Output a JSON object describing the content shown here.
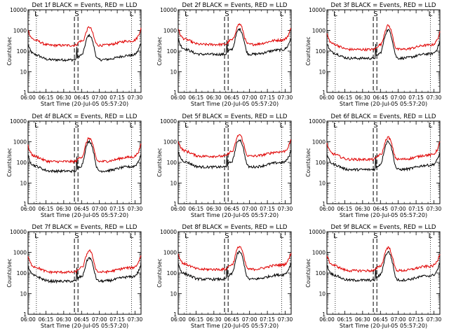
{
  "colors": {
    "events": "#000000",
    "lld": "#e00000",
    "axis": "#000000",
    "background": "#ffffff"
  },
  "chart_data": [
    {
      "type": "line",
      "title": "Det 1f BLACK = Events, RED = LLD",
      "xlabel": "Start Time (20-Jul-05 05:57:20)",
      "ylabel": "Counts/sec",
      "yscale": "log",
      "ylim": [
        1,
        10000
      ],
      "xlim_minutes_from_0600": [
        0,
        95
      ],
      "xticks": [
        "06:00",
        "06:15",
        "06:30",
        "06:45",
        "07:00",
        "07:15",
        "07:30"
      ],
      "yticks": [
        "1",
        "10",
        "100",
        "1000",
        "10000"
      ],
      "markers": [
        {
          "label": "L",
          "x_min": 7
        },
        {
          "label": "S",
          "x_min": 41
        },
        {
          "label": "L",
          "x_min": 87
        }
      ],
      "dashed_lines_x_min": [
        39,
        42
      ],
      "series": [
        {
          "name": "Events",
          "color": "#000000",
          "baseline": 38,
          "peak": 550
        },
        {
          "name": "LLD",
          "color": "#e00000",
          "baseline": 190,
          "peak": 1250
        }
      ]
    },
    {
      "type": "line",
      "title": "Det 2f BLACK = Events, RED = LLD",
      "xlabel": "Start Time (20-Jul-05 05:57:20)",
      "ylabel": "Counts/sec",
      "yscale": "log",
      "ylim": [
        1,
        10000
      ],
      "xlim_minutes_from_0600": [
        0,
        95
      ],
      "xticks": [
        "06:00",
        "06:15",
        "06:30",
        "06:45",
        "07:00",
        "07:15",
        "07:30"
      ],
      "yticks": [
        "1",
        "10",
        "100",
        "1000",
        "10000"
      ],
      "markers": [
        {
          "label": "L",
          "x_min": 7
        },
        {
          "label": "S",
          "x_min": 41
        },
        {
          "label": "L",
          "x_min": 87
        }
      ],
      "dashed_lines_x_min": [
        39,
        42
      ],
      "series": [
        {
          "name": "Events",
          "color": "#000000",
          "baseline": 70,
          "peak": 1100
        },
        {
          "name": "LLD",
          "color": "#e00000",
          "baseline": 210,
          "peak": 1800
        }
      ]
    },
    {
      "type": "line",
      "title": "Det 3f BLACK = Events, RED = LLD",
      "xlabel": "Start Time (20-Jul-05 05:57:20)",
      "ylabel": "Counts/sec",
      "yscale": "log",
      "ylim": [
        1,
        10000
      ],
      "xlim_minutes_from_0600": [
        0,
        95
      ],
      "xticks": [
        "06:00",
        "06:15",
        "06:30",
        "06:45",
        "07:00",
        "07:15",
        "07:30"
      ],
      "yticks": [
        "1",
        "10",
        "100",
        "1000",
        "10000"
      ],
      "markers": [
        {
          "label": "L",
          "x_min": 7
        },
        {
          "label": "S",
          "x_min": 41
        },
        {
          "label": "L",
          "x_min": 87
        }
      ],
      "dashed_lines_x_min": [
        39,
        42
      ],
      "series": [
        {
          "name": "Events",
          "color": "#000000",
          "baseline": 45,
          "peak": 1000
        },
        {
          "name": "LLD",
          "color": "#e00000",
          "baseline": 120,
          "peak": 1600
        }
      ]
    },
    {
      "type": "line",
      "title": "Det 4f BLACK = Events, RED = LLD",
      "xlabel": "Start Time (20-Jul-05 05:57:20)",
      "ylabel": "Counts/sec",
      "yscale": "log",
      "ylim": [
        1,
        10000
      ],
      "xlim_minutes_from_0600": [
        0,
        95
      ],
      "xticks": [
        "06:00",
        "06:15",
        "06:30",
        "06:45",
        "07:00",
        "07:15",
        "07:30"
      ],
      "yticks": [
        "1",
        "10",
        "100",
        "1000",
        "10000"
      ],
      "markers": [
        {
          "label": "L",
          "x_min": 7
        },
        {
          "label": "S",
          "x_min": 41
        },
        {
          "label": "L",
          "x_min": 87
        }
      ],
      "dashed_lines_x_min": [
        39,
        42
      ],
      "series": [
        {
          "name": "Events",
          "color": "#000000",
          "baseline": 38,
          "peak": 1000
        },
        {
          "name": "LLD",
          "color": "#e00000",
          "baseline": 110,
          "peak": 1400
        }
      ]
    },
    {
      "type": "line",
      "title": "Det 5f BLACK = Events, RED = LLD",
      "xlabel": "Start Time (20-Jul-05 05:57:20)",
      "ylabel": "Counts/sec",
      "yscale": "log",
      "ylim": [
        1,
        10000
      ],
      "xlim_minutes_from_0600": [
        0,
        95
      ],
      "xticks": [
        "06:00",
        "06:15",
        "06:30",
        "06:45",
        "07:00",
        "07:15",
        "07:30"
      ],
      "yticks": [
        "1",
        "10",
        "100",
        "1000",
        "10000"
      ],
      "markers": [
        {
          "label": "L",
          "x_min": 7
        },
        {
          "label": "S",
          "x_min": 41
        },
        {
          "label": "L",
          "x_min": 87
        }
      ],
      "dashed_lines_x_min": [
        39,
        42
      ],
      "series": [
        {
          "name": "Events",
          "color": "#000000",
          "baseline": 60,
          "peak": 1200
        },
        {
          "name": "LLD",
          "color": "#e00000",
          "baseline": 200,
          "peak": 2000
        }
      ]
    },
    {
      "type": "line",
      "title": "Det 6f BLACK = Events, RED = LLD",
      "xlabel": "Start Time (20-Jul-05 05:57:20)",
      "ylabel": "Counts/sec",
      "yscale": "log",
      "ylim": [
        1,
        10000
      ],
      "xlim_minutes_from_0600": [
        0,
        95
      ],
      "xticks": [
        "06:00",
        "06:15",
        "06:30",
        "06:45",
        "07:00",
        "07:15",
        "07:30"
      ],
      "yticks": [
        "1",
        "10",
        "100",
        "1000",
        "10000"
      ],
      "markers": [
        {
          "label": "L",
          "x_min": 7
        },
        {
          "label": "S",
          "x_min": 41
        },
        {
          "label": "L",
          "x_min": 87
        }
      ],
      "dashed_lines_x_min": [
        39,
        42
      ],
      "series": [
        {
          "name": "Events",
          "color": "#000000",
          "baseline": 45,
          "peak": 1000
        },
        {
          "name": "LLD",
          "color": "#e00000",
          "baseline": 140,
          "peak": 1500
        }
      ]
    },
    {
      "type": "line",
      "title": "Det 7f BLACK = Events, RED = LLD",
      "xlabel": "Start Time (20-Jul-05 05:57:20)",
      "ylabel": "Counts/sec",
      "yscale": "log",
      "ylim": [
        1,
        10000
      ],
      "xlim_minutes_from_0600": [
        0,
        95
      ],
      "xticks": [
        "06:00",
        "06:15",
        "06:30",
        "06:45",
        "07:00",
        "07:15",
        "07:30"
      ],
      "yticks": [
        "1",
        "10",
        "100",
        "1000",
        "10000"
      ],
      "markers": [
        {
          "label": "L",
          "x_min": 7
        },
        {
          "label": "S",
          "x_min": 41
        },
        {
          "label": "L",
          "x_min": 87
        }
      ],
      "dashed_lines_x_min": [
        39,
        42
      ],
      "series": [
        {
          "name": "Events",
          "color": "#000000",
          "baseline": 40,
          "peak": 500
        },
        {
          "name": "LLD",
          "color": "#e00000",
          "baseline": 110,
          "peak": 1100
        }
      ]
    },
    {
      "type": "line",
      "title": "Det 8f BLACK = Events, RED = LLD",
      "xlabel": "Start Time (20-Jul-05 05:57:20)",
      "ylabel": "Counts/sec",
      "yscale": "log",
      "ylim": [
        1,
        10000
      ],
      "xlim_minutes_from_0600": [
        0,
        95
      ],
      "xticks": [
        "06:00",
        "06:15",
        "06:30",
        "06:45",
        "07:00",
        "07:15",
        "07:30"
      ],
      "yticks": [
        "1",
        "10",
        "100",
        "1000",
        "10000"
      ],
      "markers": [
        {
          "label": "L",
          "x_min": 7
        },
        {
          "label": "S",
          "x_min": 41
        },
        {
          "label": "L",
          "x_min": 87
        }
      ],
      "dashed_lines_x_min": [
        39,
        42
      ],
      "series": [
        {
          "name": "Events",
          "color": "#000000",
          "baseline": 50,
          "peak": 1000
        },
        {
          "name": "LLD",
          "color": "#e00000",
          "baseline": 150,
          "peak": 1800
        }
      ]
    },
    {
      "type": "line",
      "title": "Det 9f BLACK = Events, RED = LLD",
      "xlabel": "Start Time (20-Jul-05 05:57:20)",
      "ylabel": "Counts/sec",
      "yscale": "log",
      "ylim": [
        1,
        10000
      ],
      "xlim_minutes_from_0600": [
        0,
        95
      ],
      "xticks": [
        "06:00",
        "06:15",
        "06:30",
        "06:45",
        "07:00",
        "07:15",
        "07:30"
      ],
      "yticks": [
        "1",
        "10",
        "100",
        "1000",
        "10000"
      ],
      "markers": [
        {
          "label": "L",
          "x_min": 7
        },
        {
          "label": "S",
          "x_min": 41
        },
        {
          "label": "L",
          "x_min": 87
        }
      ],
      "dashed_lines_x_min": [
        39,
        42
      ],
      "series": [
        {
          "name": "Events",
          "color": "#000000",
          "baseline": 45,
          "peak": 1000
        },
        {
          "name": "LLD",
          "color": "#e00000",
          "baseline": 130,
          "peak": 1600
        }
      ]
    }
  ]
}
